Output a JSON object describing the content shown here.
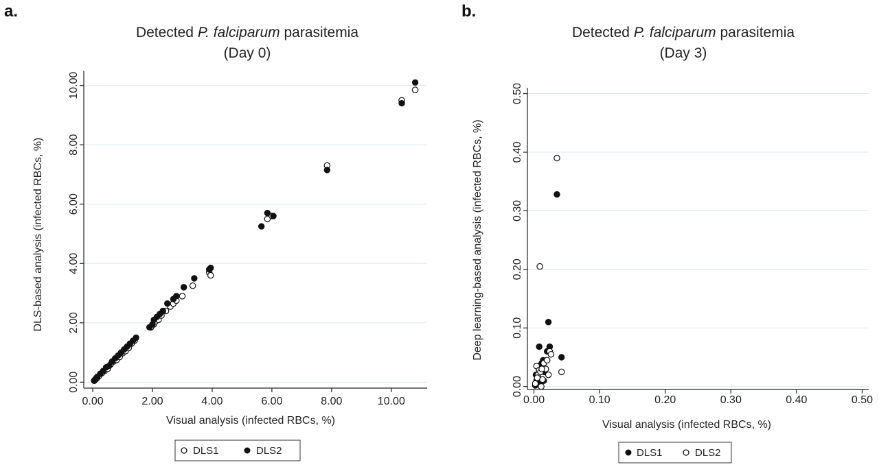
{
  "chart_data": [
    {
      "type": "scatter",
      "panel_label": "a.",
      "title_line1_pre": "Detected ",
      "title_line1_italic": "P. falciparum",
      "title_line1_post": " parasitemia",
      "title_line2": "(Day 0)",
      "xlabel": "Visual analysis (infected RBCs, %)",
      "ylabel": "DLS-based analysis (infected RBCs, %)",
      "xlim": [
        -0.3,
        11.2
      ],
      "ylim": [
        -0.2,
        10.5
      ],
      "xticks": [
        0,
        2,
        4,
        6,
        8,
        10
      ],
      "xtick_labels": [
        "0.00",
        "2.00",
        "4.00",
        "6.00",
        "8.00",
        "10.00"
      ],
      "yticks": [
        0,
        2,
        4,
        6,
        8,
        10
      ],
      "ytick_labels": [
        "0.00",
        "2.00",
        "4.00",
        "6.00",
        "8.00",
        "10.00"
      ],
      "grid": "horizontal",
      "legend_position": "bottom-center",
      "series": [
        {
          "name": "DLS1",
          "marker": "hollow",
          "x": [
            0.05,
            0.1,
            0.15,
            0.2,
            0.3,
            0.4,
            0.5,
            0.6,
            0.7,
            0.8,
            0.9,
            1.0,
            1.1,
            1.2,
            1.3,
            1.4,
            1.95,
            2.05,
            2.1,
            2.2,
            2.3,
            2.45,
            2.6,
            2.7,
            2.8,
            3.0,
            3.35,
            3.9,
            3.95,
            5.85,
            6.0,
            7.85,
            10.35,
            10.8
          ],
          "y": [
            0.05,
            0.1,
            0.15,
            0.2,
            0.3,
            0.38,
            0.45,
            0.6,
            0.7,
            0.75,
            0.85,
            0.98,
            1.05,
            1.15,
            1.3,
            1.4,
            1.85,
            1.95,
            2.05,
            2.1,
            2.25,
            2.4,
            2.55,
            2.65,
            2.75,
            2.9,
            3.25,
            3.7,
            3.6,
            5.5,
            5.6,
            7.3,
            9.5,
            9.85
          ]
        },
        {
          "name": "DLS2",
          "marker": "filled",
          "x": [
            0.05,
            0.1,
            0.15,
            0.25,
            0.35,
            0.45,
            0.55,
            0.65,
            0.75,
            0.85,
            0.95,
            1.05,
            1.15,
            1.25,
            1.35,
            1.45,
            1.9,
            2.0,
            2.05,
            2.15,
            2.25,
            2.35,
            2.5,
            2.7,
            2.8,
            3.05,
            3.4,
            3.9,
            3.95,
            5.65,
            5.85,
            6.05,
            7.85,
            10.35,
            10.8
          ],
          "y": [
            0.05,
            0.12,
            0.18,
            0.28,
            0.38,
            0.5,
            0.55,
            0.7,
            0.8,
            0.9,
            1.0,
            1.1,
            1.2,
            1.3,
            1.4,
            1.5,
            1.85,
            1.95,
            2.1,
            2.2,
            2.3,
            2.4,
            2.65,
            2.8,
            2.9,
            3.2,
            3.5,
            3.8,
            3.85,
            5.25,
            5.7,
            5.6,
            7.15,
            9.4,
            10.1
          ]
        }
      ]
    },
    {
      "type": "scatter",
      "panel_label": "b.",
      "title_line1_pre": "Detected ",
      "title_line1_italic": "P. falciparum",
      "title_line1_post": " parasitemia",
      "title_line2": "(Day 3)",
      "xlabel": "Visual analysis (infected RBCs, %)",
      "ylabel": "Deep learning-based analysis (infected RBCs, %)",
      "xlim": [
        -0.01,
        0.51
      ],
      "ylim": [
        -0.005,
        0.51
      ],
      "xticks": [
        0,
        0.1,
        0.2,
        0.3,
        0.4,
        0.5
      ],
      "xtick_labels": [
        "0.00",
        "0.10",
        "0.20",
        "0.30",
        "0.40",
        "0.50"
      ],
      "yticks": [
        0,
        0.1,
        0.2,
        0.3,
        0.4,
        0.5
      ],
      "ytick_labels": [
        "0.00",
        "0.10",
        "0.20",
        "0.30",
        "0.40",
        "0.50"
      ],
      "grid": "horizontal",
      "legend_position": "bottom-center",
      "series": [
        {
          "name": "DLS1",
          "marker": "filled",
          "x": [
            0.002,
            0.004,
            0.005,
            0.006,
            0.008,
            0.01,
            0.012,
            0.014,
            0.016,
            0.018,
            0.02,
            0.022,
            0.024,
            0.026,
            0.035,
            0.042,
            0.01,
            0.003,
            0.007,
            0.015
          ],
          "y": [
            0.002,
            0.01,
            0.02,
            0.015,
            0.068,
            0.03,
            0.04,
            0.045,
            0.025,
            0.03,
            0.06,
            0.11,
            0.068,
            0.055,
            0.328,
            0.05,
            0.005,
            0.02,
            0.035,
            0.01
          ]
        },
        {
          "name": "DLS2",
          "marker": "hollow",
          "x": [
            0.002,
            0.004,
            0.006,
            0.008,
            0.009,
            0.011,
            0.013,
            0.015,
            0.018,
            0.02,
            0.022,
            0.024,
            0.026,
            0.035,
            0.042,
            0.01,
            0.005,
            0.012
          ],
          "y": [
            0.005,
            0.035,
            0.02,
            0.028,
            0.205,
            0.0,
            0.012,
            0.04,
            0.03,
            0.045,
            0.02,
            0.06,
            0.055,
            0.39,
            0.025,
            0.025,
            0.015,
            0.03
          ]
        }
      ]
    }
  ]
}
